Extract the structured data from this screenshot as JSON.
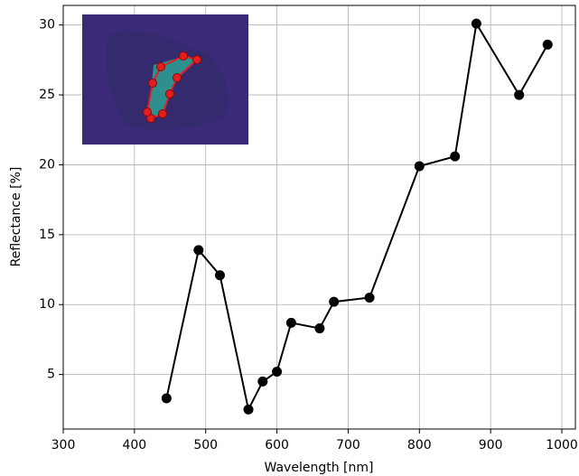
{
  "chart_data": {
    "type": "line",
    "x_label": "Wavelength [nm]",
    "y_label": "Reflectance [%]",
    "x": [
      445,
      490,
      520,
      560,
      580,
      600,
      620,
      660,
      680,
      730,
      800,
      850,
      880,
      940,
      980
    ],
    "series": [
      {
        "color": "#000000",
        "values": [
          3.3,
          13.9,
          12.1,
          2.5,
          4.5,
          5.2,
          8.7,
          8.3,
          10.2,
          10.5,
          19.9,
          20.6,
          30.1,
          25.0,
          28.6
        ]
      }
    ],
    "xlim": [
      300,
      1019
    ],
    "ylim": [
      1.1,
      31.4
    ],
    "xticks": [
      300,
      400,
      500,
      600,
      700,
      800,
      900,
      1000
    ],
    "yticks": [
      5,
      10,
      15,
      20,
      25,
      30
    ],
    "grid": true
  }
}
